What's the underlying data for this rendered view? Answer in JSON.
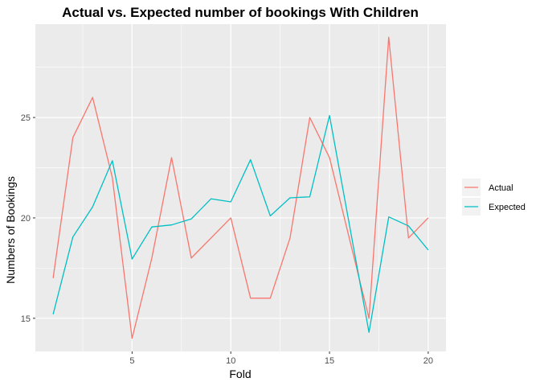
{
  "chart_data": {
    "type": "line",
    "title": "Actual vs. Expected number of bookings With Children",
    "xlabel": "Fold",
    "ylabel": "Numbers of Bookings",
    "xlim": [
      0.1,
      20.9
    ],
    "ylim": [
      13.35,
      29.65
    ],
    "x_ticks": [
      5,
      10,
      15,
      20
    ],
    "y_ticks": [
      15,
      20,
      25
    ],
    "grid": true,
    "legend_position": "right",
    "x": [
      1,
      2,
      3,
      4,
      5,
      6,
      7,
      8,
      9,
      10,
      11,
      12,
      13,
      14,
      15,
      16,
      17,
      18,
      19,
      20
    ],
    "series": [
      {
        "name": "Actual",
        "color": "#F8766D",
        "values": [
          17,
          24,
          26,
          22,
          14,
          18,
          23,
          18,
          19,
          20,
          16,
          16,
          19,
          25,
          23,
          19,
          15,
          29,
          19,
          20
        ]
      },
      {
        "name": "Expected",
        "color": "#00BFC4",
        "values": [
          15.2,
          19.05,
          20.55,
          22.85,
          17.95,
          19.55,
          19.65,
          19.95,
          20.95,
          20.8,
          22.9,
          20.1,
          21.0,
          21.05,
          25.1,
          19.7,
          14.3,
          20.05,
          19.6,
          18.4
        ]
      }
    ]
  }
}
